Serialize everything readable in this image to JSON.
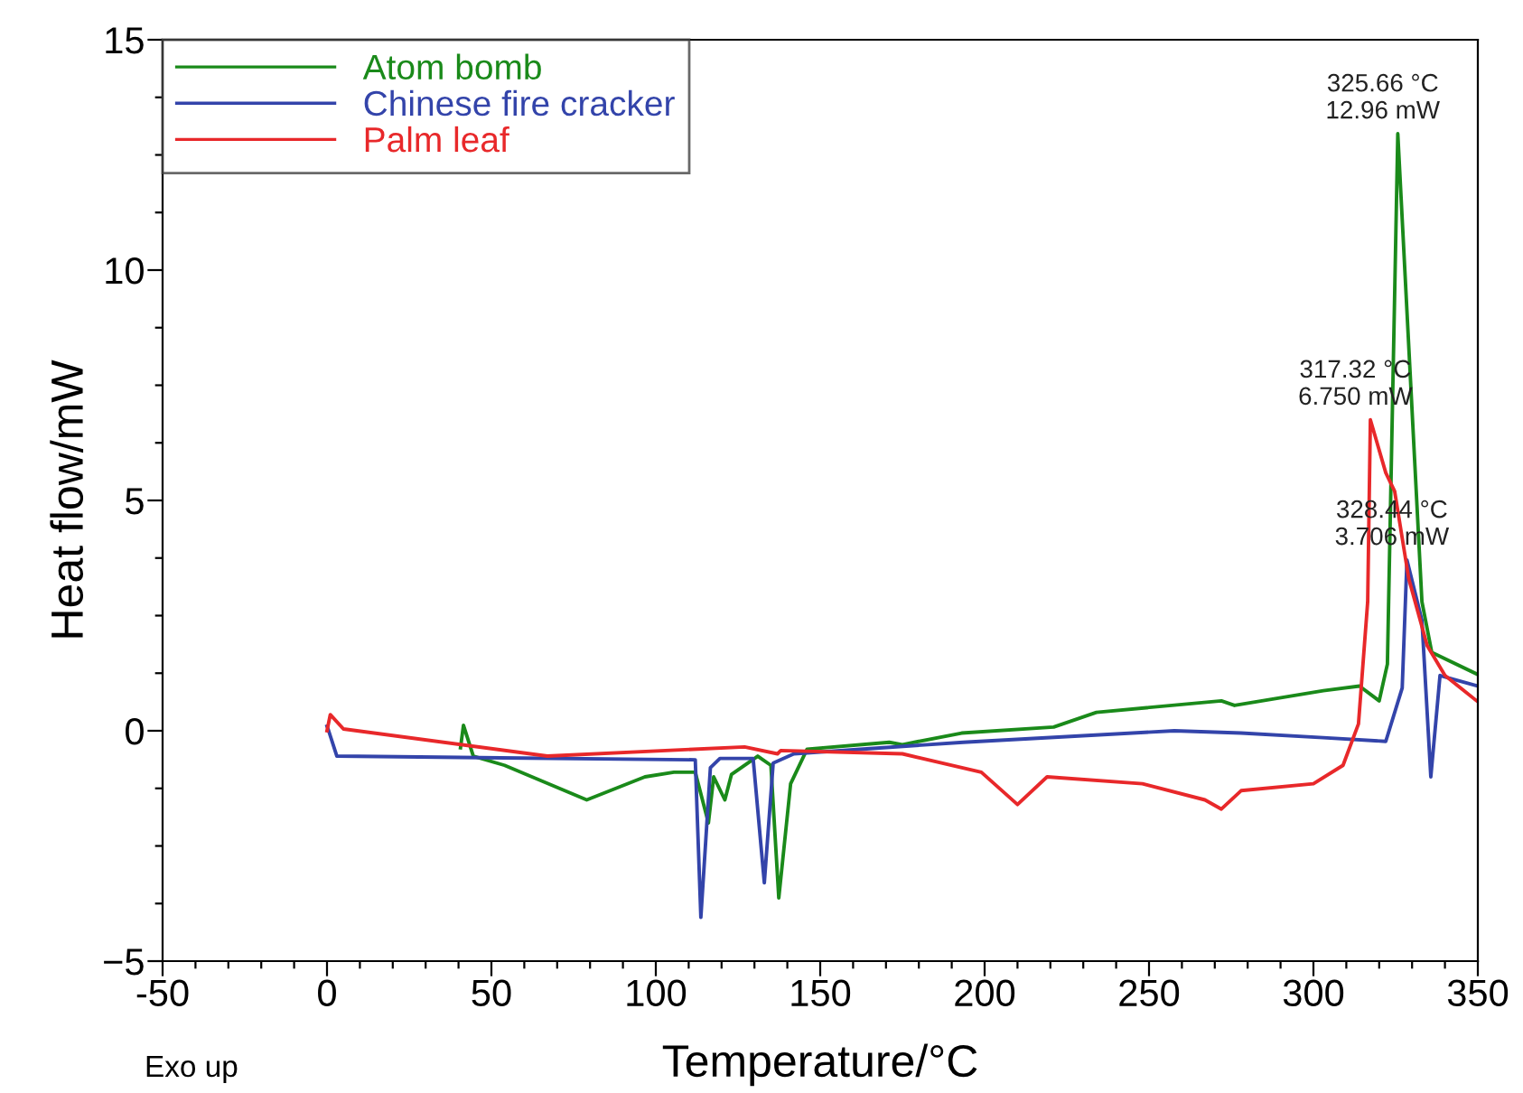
{
  "chart_data": {
    "type": "line",
    "xlabel": "Temperature/°C",
    "ylabel": "Heat flow/mW",
    "xlim": [
      -50,
      350
    ],
    "ylim": [
      -5,
      15
    ],
    "xticks": [
      -50,
      {
        "value": -40,
        "label": null
      },
      {
        "value": -30,
        "label": null
      },
      {
        "value": -20,
        "label": null
      },
      {
        "value": -10,
        "label": null
      },
      0,
      {
        "value": 10,
        "label": null
      },
      {
        "value": 20,
        "label": null
      },
      {
        "value": 30,
        "label": null
      },
      {
        "value": 40,
        "label": null
      },
      50,
      {
        "value": 60,
        "label": null
      },
      {
        "value": 70,
        "label": null
      },
      {
        "value": 80,
        "label": null
      },
      {
        "value": 90,
        "label": null
      },
      100,
      {
        "value": 110,
        "label": null
      },
      {
        "value": 120,
        "label": null
      },
      {
        "value": 130,
        "label": null
      },
      {
        "value": 140,
        "label": null
      },
      150,
      {
        "value": 160,
        "label": null
      },
      {
        "value": 170,
        "label": null
      },
      {
        "value": 180,
        "label": null
      },
      {
        "value": 190,
        "label": null
      },
      200,
      {
        "value": 210,
        "label": null
      },
      {
        "value": 220,
        "label": null
      },
      {
        "value": 230,
        "label": null
      },
      {
        "value": 240,
        "label": null
      },
      250,
      {
        "value": 260,
        "label": null
      },
      {
        "value": 270,
        "label": null
      },
      {
        "value": 280,
        "label": null
      },
      {
        "value": 290,
        "label": null
      },
      300,
      {
        "value": 310,
        "label": null
      },
      {
        "value": 320,
        "label": null
      },
      {
        "value": 330,
        "label": null
      },
      {
        "value": 340,
        "label": null
      },
      350
    ],
    "yticks": [
      {
        "value": -5,
        "label": "−5"
      },
      {
        "value": -3.75,
        "label": null
      },
      {
        "value": -2.5,
        "label": null
      },
      {
        "value": -1.25,
        "label": null
      },
      0,
      {
        "value": 1.25,
        "label": null
      },
      {
        "value": 2.5,
        "label": null
      },
      {
        "value": 3.75,
        "label": null
      },
      5,
      {
        "value": 6.25,
        "label": null
      },
      {
        "value": 7.5,
        "label": null
      },
      {
        "value": 8.75,
        "label": null
      },
      10,
      {
        "value": 11.25,
        "label": null
      },
      {
        "value": 12.5,
        "label": null
      },
      {
        "value": 13.75,
        "label": null
      },
      15
    ],
    "grid": false,
    "legend": "top left",
    "marker": "none",
    "line_style": "solid",
    "series": [
      {
        "name": "Atom bomb",
        "color": "#1a8a1a",
        "x": [
          40.6,
          41.5,
          44.5,
          54,
          79,
          96.7,
          105.5,
          112,
          116,
          117.6,
          121,
          123,
          131,
          135,
          137.4,
          141,
          146,
          171,
          175,
          193,
          221,
          234,
          272,
          276,
          303,
          314,
          320,
          322.5,
          325.66,
          333,
          336,
          350
        ],
        "values": [
          -0.37,
          0.12,
          -0.55,
          -0.75,
          -1.5,
          -1.0,
          -0.9,
          -0.9,
          -2.0,
          -1.0,
          -1.5,
          -0.95,
          -0.55,
          -0.75,
          -3.63,
          -1.15,
          -0.4,
          -0.25,
          -0.3,
          -0.05,
          0.08,
          0.4,
          0.65,
          0.55,
          0.87,
          0.97,
          0.65,
          1.45,
          12.96,
          2.8,
          1.7,
          1.22
        ]
      },
      {
        "name": "Chinese fire cracker",
        "color": "#3344aa",
        "x": [
          0,
          0.5,
          3,
          112,
          113.7,
          116.6,
          119.5,
          129.6,
          133,
          135.7,
          142,
          193.5,
          257.7,
          278,
          303,
          322,
          327,
          328.44,
          333,
          335.7,
          338.5,
          350
        ],
        "values": [
          0.1,
          0.0,
          -0.55,
          -0.63,
          -4.05,
          -0.8,
          -0.6,
          -0.6,
          -3.3,
          -0.7,
          -0.5,
          -0.25,
          0.0,
          -0.05,
          -0.15,
          -0.23,
          0.93,
          3.706,
          2.4,
          -1.0,
          1.2,
          0.97
        ]
      },
      {
        "name": "Palm leaf",
        "color": "#e8282a",
        "x": [
          0,
          1,
          5,
          67,
          127,
          137,
          138,
          175,
          199,
          210,
          219,
          248,
          267,
          272,
          278,
          300,
          309,
          313.7,
          316.5,
          317.32,
          322,
          324.7,
          329,
          334.6,
          340,
          350
        ],
        "values": [
          0.0,
          0.35,
          0.04,
          -0.55,
          -0.35,
          -0.5,
          -0.43,
          -0.5,
          -0.9,
          -1.6,
          -1.0,
          -1.15,
          -1.5,
          -1.7,
          -1.3,
          -1.15,
          -0.75,
          0.15,
          2.8,
          6.75,
          5.6,
          5.2,
          3.3,
          1.85,
          1.2,
          0.63
        ]
      }
    ],
    "annotations": [
      {
        "text": "325.66 °C\n12.96 mW",
        "x": 325.66,
        "y": 12.96
      },
      {
        "text": "317.32 °C\n6.750 mW",
        "x": 317.32,
        "y": 6.75
      },
      {
        "text": "328.44 °C\n3.706 mW",
        "x": 328.44,
        "y": 3.706
      },
      "Exo up"
    ]
  }
}
